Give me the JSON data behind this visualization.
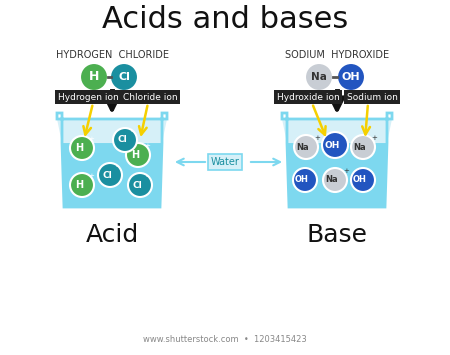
{
  "title": "Acids and bases",
  "title_fontsize": 22,
  "bg_color": "#ffffff",
  "acid_label": "HYDROGEN  CHLORIDE",
  "base_label": "SODIUM  HYDROXIDE",
  "acid_bottom_label": "Acid",
  "base_bottom_label": "Base",
  "water_label": "Water",
  "beaker_fill_light": "#d6f0f8",
  "beaker_fill_dark": "#7dd8ef",
  "beaker_stroke": "#7dd8ef",
  "h_color": "#4caf50",
  "cl_color": "#1a8fa0",
  "na_color": "#c8cdd4",
  "oh_color": "#2255c0",
  "label_bg": "#222222",
  "label_fg": "#ffffff",
  "arrow_color": "#111111",
  "yellow_arrow": "#f5d000",
  "water_box_color": "#7dd8ef",
  "footer": "www.shutterstock.com  •  1203415423"
}
